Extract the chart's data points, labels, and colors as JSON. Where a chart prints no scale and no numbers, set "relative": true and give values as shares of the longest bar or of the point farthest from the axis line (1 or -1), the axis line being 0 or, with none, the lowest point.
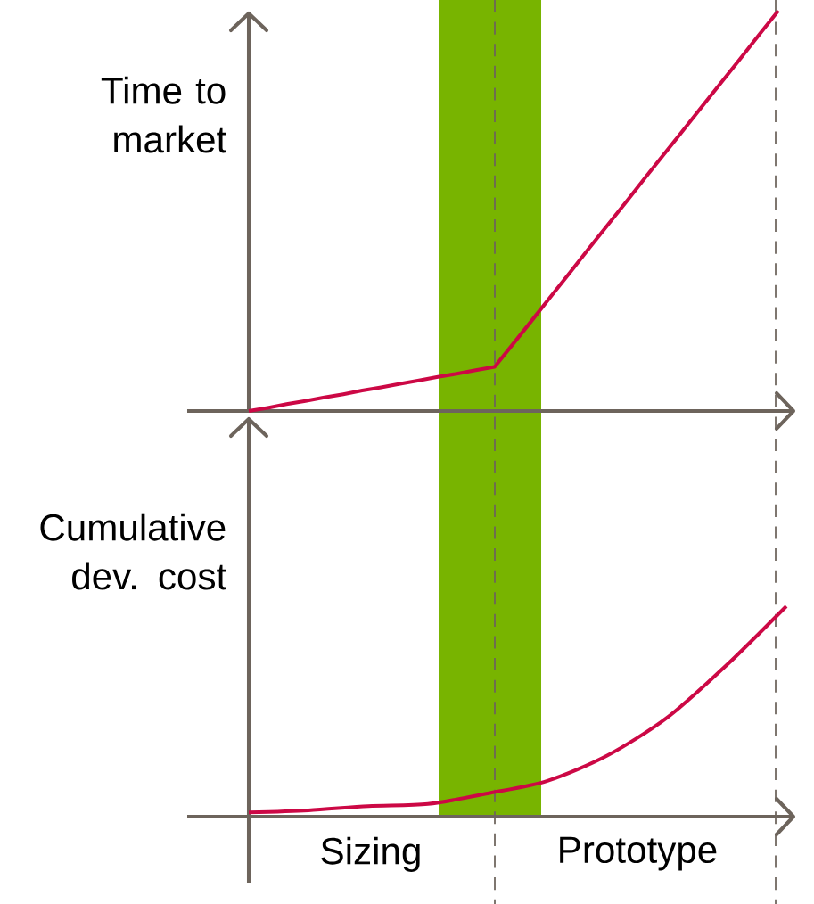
{
  "chart_data": [
    {
      "type": "line",
      "ylabel": "Time to market",
      "relative": true,
      "marker": "none",
      "categories": [
        null,
        null,
        null,
        null,
        null,
        null,
        null,
        null,
        null,
        null,
        null,
        null,
        null,
        null,
        null,
        null,
        null,
        null,
        null,
        null,
        null,
        null,
        null,
        null,
        null,
        null,
        null,
        null,
        null
      ],
      "series": [
        {
          "color": "#cc0845",
          "values": [
            0,
            0.008,
            0.017,
            0.025,
            0.034,
            0.042,
            0.051,
            0.059,
            0.068,
            0.076,
            0.085,
            0.093,
            0.102,
            0.11,
            0.169,
            0.228,
            0.288,
            0.347,
            0.407,
            0.466,
            0.525,
            0.585,
            0.644,
            0.703,
            0.763,
            0.822,
            0.881,
            0.941,
            1
          ]
        }
      ]
    },
    {
      "type": "line",
      "ylabel": "Cumulative dev. cost",
      "relative": true,
      "marker": "none",
      "categories": [
        null,
        null,
        null,
        null,
        null,
        null,
        null,
        null,
        null,
        null
      ],
      "series": [
        {
          "color": "#cc0845",
          "values": [
            0.02,
            0.03,
            0.05,
            0.06,
            0.11,
            0.17,
            0.29,
            0.47,
            0.72,
            1.0
          ]
        }
      ],
      "annotations": [
        "Sizing",
        "Prototype"
      ]
    }
  ]
}
